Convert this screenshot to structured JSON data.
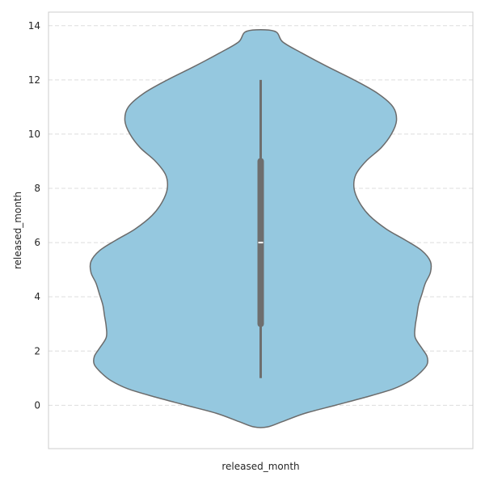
{
  "chart_data": {
    "type": "violin",
    "title": "",
    "xlabel": "released_month",
    "ylabel": "released_month",
    "ylim": [
      -1.6,
      14.5
    ],
    "yticks": [
      0,
      2,
      4,
      6,
      8,
      10,
      12,
      14
    ],
    "grid": "horizontal dashed",
    "color": "#95c8df",
    "edge_color": "#6b6b6b",
    "box_color": "#6e6e6e",
    "summary": {
      "min": 1,
      "q1": 3,
      "median": 6,
      "q3": 9,
      "max": 12
    },
    "density_range": [
      -0.8,
      13.8
    ],
    "density": [
      {
        "y": -0.8,
        "w": 0.04
      },
      {
        "y": -0.6,
        "w": 0.13
      },
      {
        "y": -0.3,
        "w": 0.26
      },
      {
        "y": 0.0,
        "w": 0.44
      },
      {
        "y": 0.3,
        "w": 0.62
      },
      {
        "y": 0.6,
        "w": 0.78
      },
      {
        "y": 0.9,
        "w": 0.88
      },
      {
        "y": 1.2,
        "w": 0.94
      },
      {
        "y": 1.5,
        "w": 0.98
      },
      {
        "y": 1.8,
        "w": 0.98
      },
      {
        "y": 2.1,
        "w": 0.95
      },
      {
        "y": 2.5,
        "w": 0.91
      },
      {
        "y": 2.9,
        "w": 0.91
      },
      {
        "y": 3.3,
        "w": 0.92
      },
      {
        "y": 3.7,
        "w": 0.93
      },
      {
        "y": 4.1,
        "w": 0.95
      },
      {
        "y": 4.5,
        "w": 0.97
      },
      {
        "y": 4.9,
        "w": 1.0
      },
      {
        "y": 5.3,
        "w": 1.0
      },
      {
        "y": 5.7,
        "w": 0.95
      },
      {
        "y": 6.1,
        "w": 0.85
      },
      {
        "y": 6.5,
        "w": 0.74
      },
      {
        "y": 7.0,
        "w": 0.64
      },
      {
        "y": 7.5,
        "w": 0.58
      },
      {
        "y": 8.0,
        "w": 0.55
      },
      {
        "y": 8.5,
        "w": 0.56
      },
      {
        "y": 9.0,
        "w": 0.62
      },
      {
        "y": 9.5,
        "w": 0.71
      },
      {
        "y": 10.0,
        "w": 0.77
      },
      {
        "y": 10.5,
        "w": 0.8
      },
      {
        "y": 11.0,
        "w": 0.78
      },
      {
        "y": 11.5,
        "w": 0.69
      },
      {
        "y": 12.0,
        "w": 0.55
      },
      {
        "y": 12.5,
        "w": 0.39
      },
      {
        "y": 13.0,
        "w": 0.24
      },
      {
        "y": 13.4,
        "w": 0.13
      },
      {
        "y": 13.8,
        "w": 0.08
      }
    ]
  }
}
